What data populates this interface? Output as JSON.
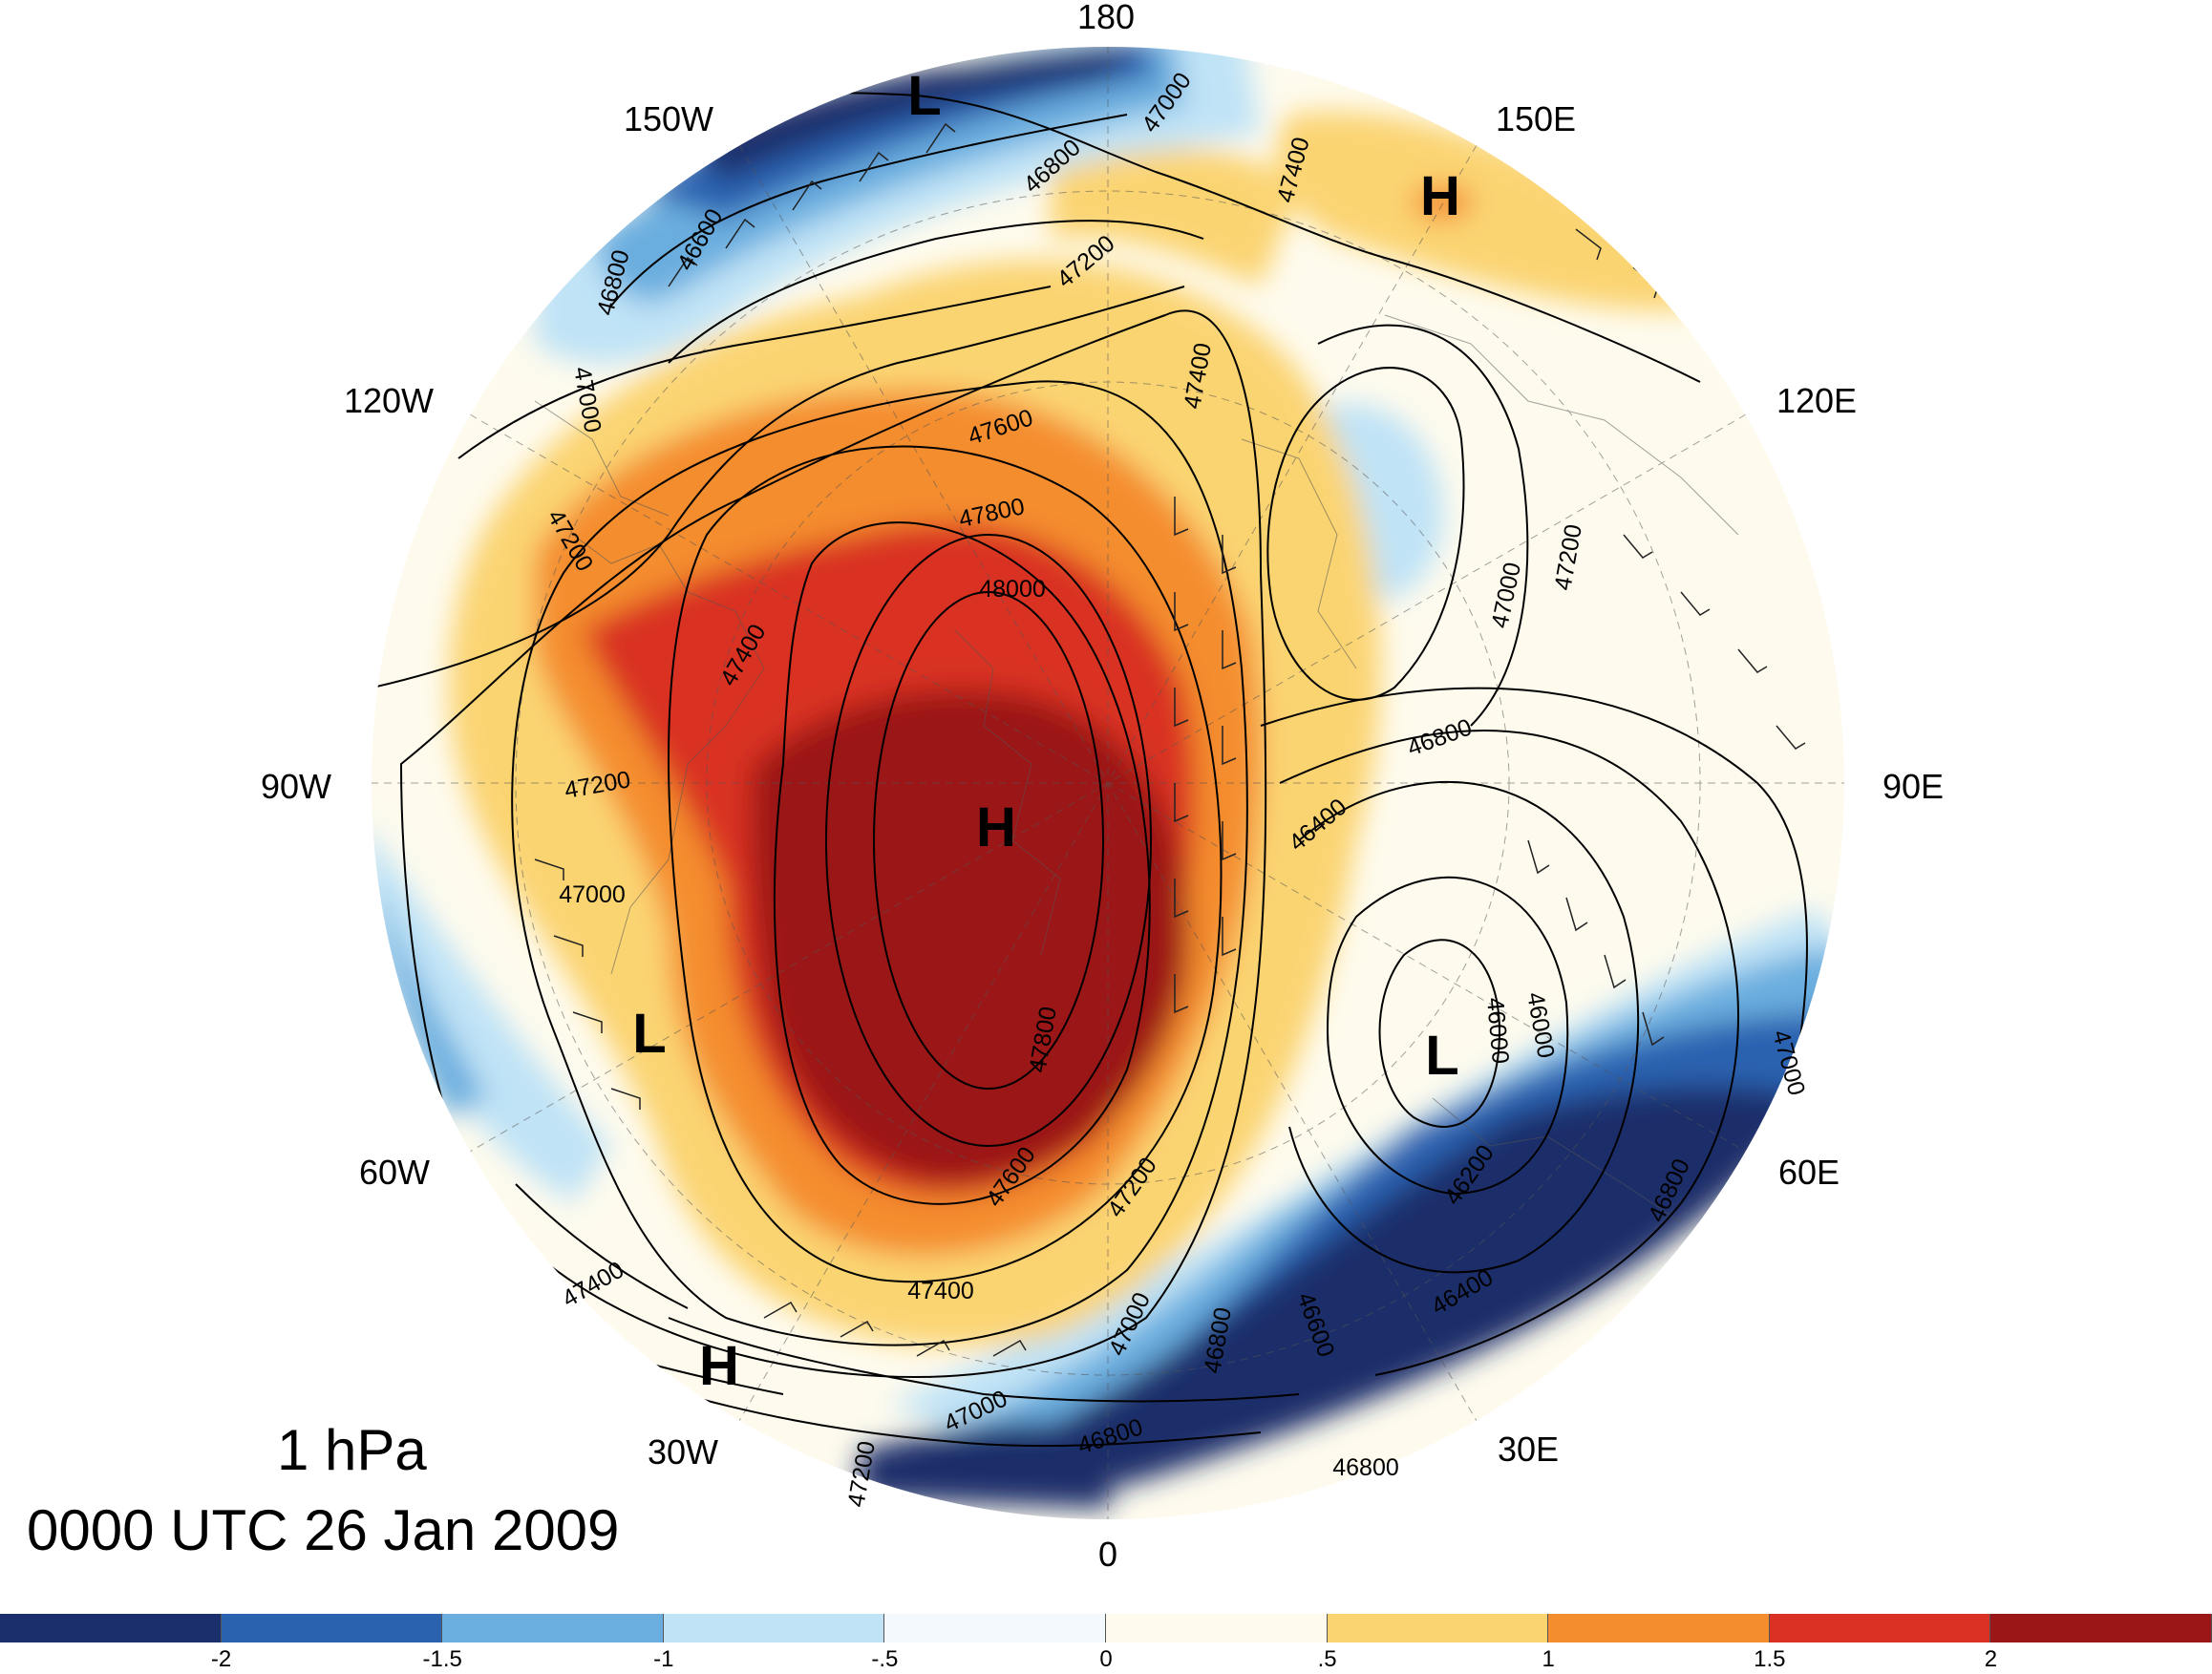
{
  "title": {
    "level": "1 hPa",
    "time": "0000 UTC 26 Jan 2009"
  },
  "longitude_labels": [
    "180",
    "150E",
    "120E",
    "90E",
    "60E",
    "30E",
    "0",
    "30W",
    "60W",
    "90W",
    "120W",
    "150W"
  ],
  "pressure_centers": [
    "H",
    "H",
    "H",
    "L",
    "L",
    "L"
  ],
  "contour_labels": [
    "46600",
    "46800",
    "47000",
    "46800",
    "47000",
    "47200",
    "47400",
    "47000",
    "47200",
    "47400",
    "47600",
    "47800",
    "48000",
    "47400",
    "47200",
    "47000",
    "47200",
    "46800",
    "46400",
    "46000",
    "46000",
    "46200",
    "46400",
    "46800",
    "47000",
    "47800",
    "47600",
    "47200",
    "47400",
    "47400",
    "47000",
    "46800",
    "46600",
    "47000",
    "46800",
    "47200",
    "46800"
  ],
  "colorbar": {
    "colors": [
      "#1a2f6b",
      "#2a62b0",
      "#6aaedf",
      "#c0e3f6",
      "#f4f9fd",
      "#fefbee",
      "#fbd472",
      "#f48d2e",
      "#d93224",
      "#9b1616"
    ],
    "tick_labels": [
      "-2",
      "-1.5",
      "-1",
      "-.5",
      "0",
      ".5",
      "1",
      "1.5",
      "2"
    ]
  }
}
